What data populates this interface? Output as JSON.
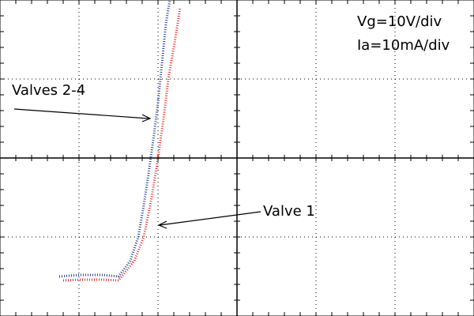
{
  "chart_data": {
    "type": "line",
    "xlim": [
      0,
      6
    ],
    "ylim": [
      0,
      4
    ],
    "series": [
      {
        "name": "Valves 2-4",
        "color": "#2a3f8f",
        "x": [
          0.75,
          1.0,
          1.3,
          1.5,
          1.65,
          1.75,
          1.82,
          1.88,
          1.95,
          2.0,
          2.05,
          2.1,
          2.15
        ],
        "values": [
          0.5,
          0.52,
          0.52,
          0.5,
          0.7,
          1.0,
          1.4,
          1.8,
          2.3,
          2.7,
          3.2,
          3.7,
          4.0
        ]
      },
      {
        "name": "Valve 1",
        "color": "#e0302a",
        "x": [
          0.8,
          1.0,
          1.3,
          1.5,
          1.7,
          1.82,
          1.92,
          2.0,
          2.07,
          2.13,
          2.2,
          2.28
        ],
        "values": [
          0.45,
          0.46,
          0.46,
          0.45,
          0.7,
          1.0,
          1.5,
          2.0,
          2.5,
          3.0,
          3.4,
          3.9
        ]
      }
    ],
    "annotations": [
      "Vg=10V/div",
      "Ia=10mA/div"
    ]
  }
}
